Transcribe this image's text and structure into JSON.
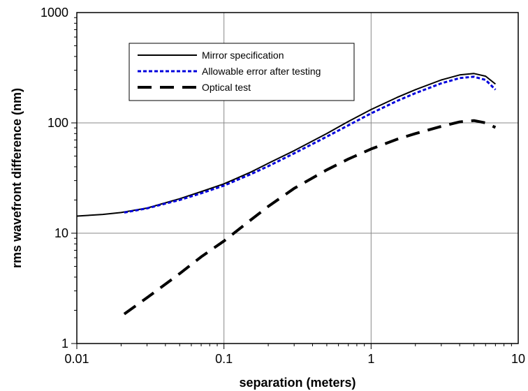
{
  "chart_data": {
    "type": "line",
    "title": "",
    "xlabel": "separation (meters)",
    "ylabel": "rms wavefront difference (nm)",
    "xscale": "log",
    "yscale": "log",
    "xlim": [
      0.01,
      10
    ],
    "ylim": [
      1,
      1000
    ],
    "grid": "major",
    "legend_position": "top-left inside plot",
    "x_ticks": [
      {
        "value": 0.01,
        "label": "0.01"
      },
      {
        "value": 0.1,
        "label": "0.1"
      },
      {
        "value": 1,
        "label": "1"
      },
      {
        "value": 10,
        "label": "10"
      }
    ],
    "y_ticks": [
      {
        "value": 1,
        "label": "1"
      },
      {
        "value": 10,
        "label": "10"
      },
      {
        "value": 100,
        "label": "100"
      },
      {
        "value": 1000,
        "label": "1000"
      }
    ],
    "series": [
      {
        "name": "Mirror specification",
        "color": "#000000",
        "style": "solid",
        "x": [
          0.01,
          0.015,
          0.02,
          0.03,
          0.05,
          0.07,
          0.1,
          0.15,
          0.2,
          0.3,
          0.5,
          0.7,
          1,
          1.5,
          2,
          3,
          4,
          5,
          6,
          7
        ],
        "y": [
          14.3,
          14.8,
          15.4,
          16.9,
          20.5,
          23.8,
          28,
          35.5,
          43,
          56,
          80,
          103,
          132,
          170,
          200,
          245,
          272,
          280,
          265,
          225
        ]
      },
      {
        "name": "Allowable error after testing",
        "color": "#0000dd",
        "style": "dotted",
        "x": [
          0.021,
          0.03,
          0.05,
          0.07,
          0.1,
          0.15,
          0.2,
          0.3,
          0.5,
          0.7,
          1,
          1.5,
          2,
          3,
          4,
          5,
          6,
          7
        ],
        "y": [
          15.4,
          16.8,
          20,
          23,
          27,
          34,
          40.5,
          53,
          75,
          95,
          122,
          158,
          186,
          228,
          255,
          262,
          245,
          200
        ]
      },
      {
        "name": "Optical test",
        "color": "#000000",
        "style": "dashed",
        "x": [
          0.021,
          0.03,
          0.05,
          0.07,
          0.1,
          0.15,
          0.2,
          0.3,
          0.5,
          0.7,
          1,
          1.5,
          2,
          3,
          4,
          5,
          6,
          7
        ],
        "y": [
          1.85,
          2.6,
          4.3,
          6.1,
          8.5,
          13,
          17.5,
          25.5,
          37.5,
          47,
          58,
          71,
          80,
          93,
          102,
          105,
          100,
          91
        ]
      }
    ]
  }
}
